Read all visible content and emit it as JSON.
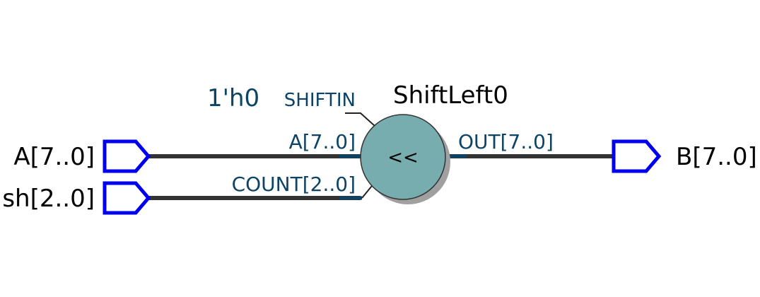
{
  "colors": {
    "port_stroke": "#0000ee",
    "wire": "#333333",
    "pin_text": "#0d4466",
    "pin_stub": "#0d4466",
    "block_fill": "#77adae",
    "block_stroke": "#333333",
    "block_shadow": "#a0a0a0"
  },
  "inputs": [
    {
      "label": "A[7..0]",
      "icon": "input-port-pentagon-icon"
    },
    {
      "label": "sh[2..0]",
      "icon": "input-port-pentagon-icon"
    }
  ],
  "outputs": [
    {
      "label": "B[7..0]",
      "icon": "output-port-pentagon-icon"
    }
  ],
  "block": {
    "name": "ShiftLeft0",
    "symbol": "<<",
    "pins": {
      "shiftin": "SHIFTIN",
      "data_in": "A[7..0]",
      "count": "COUNT[2..0]",
      "out": "OUT[7..0]"
    }
  },
  "constant": {
    "value": "1'h0"
  }
}
